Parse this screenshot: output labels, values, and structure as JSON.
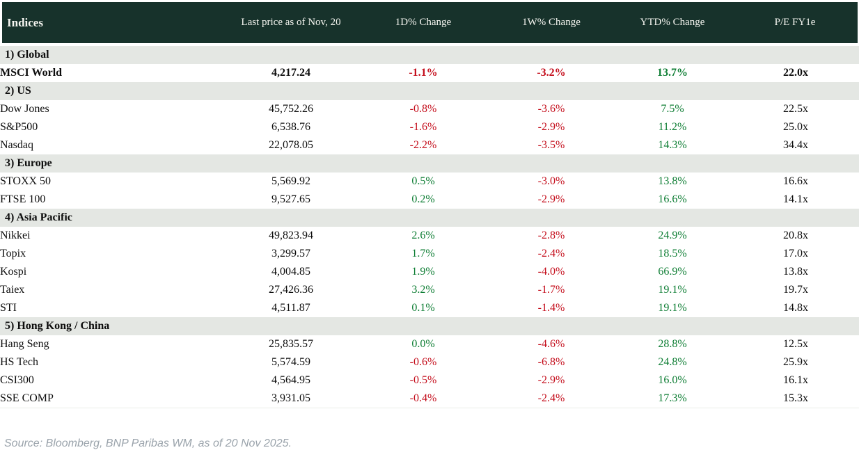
{
  "colors": {
    "header_bg": "#17322b",
    "section_bg": "#e4e7e3",
    "positive": "#0d7d33",
    "negative": "#c40d1b"
  },
  "chart_data": {
    "type": "table",
    "title": "Indices",
    "columns": [
      "Indices",
      "Last price as of Nov, 20",
      "1D% Change",
      "1W% Change",
      "YTD% Change",
      "P/E FY1e"
    ],
    "sections": [
      {
        "label": "1) Global",
        "rows": [
          {
            "name": "MSCI World",
            "bold": true,
            "values": [
              "4,217.24",
              "-1.1%",
              "-3.2%",
              "13.7%",
              "22.0x"
            ]
          }
        ]
      },
      {
        "label": "2) US",
        "rows": [
          {
            "name": "Dow Jones",
            "values": [
              "45,752.26",
              "-0.8%",
              "-3.6%",
              "7.5%",
              "22.5x"
            ]
          },
          {
            "name": "S&P500",
            "values": [
              "6,538.76",
              "-1.6%",
              "-2.9%",
              "11.2%",
              "25.0x"
            ]
          },
          {
            "name": "Nasdaq",
            "values": [
              "22,078.05",
              "-2.2%",
              "-3.5%",
              "14.3%",
              "34.4x"
            ]
          }
        ]
      },
      {
        "label": "3) Europe",
        "rows": [
          {
            "name": "STOXX 50",
            "values": [
              "5,569.92",
              "0.5%",
              "-3.0%",
              "13.8%",
              "16.6x"
            ]
          },
          {
            "name": "FTSE 100",
            "values": [
              "9,527.65",
              "0.2%",
              "-2.9%",
              "16.6%",
              "14.1x"
            ]
          }
        ]
      },
      {
        "label": "4) Asia Pacific",
        "rows": [
          {
            "name": "Nikkei",
            "values": [
              "49,823.94",
              "2.6%",
              "-2.8%",
              "24.9%",
              "20.8x"
            ]
          },
          {
            "name": "Topix",
            "values": [
              "3,299.57",
              "1.7%",
              "-2.4%",
              "18.5%",
              "17.0x"
            ]
          },
          {
            "name": "Kospi",
            "values": [
              "4,004.85",
              "1.9%",
              "-4.0%",
              "66.9%",
              "13.8x"
            ]
          },
          {
            "name": "Taiex",
            "values": [
              "27,426.36",
              "3.2%",
              "-1.7%",
              "19.1%",
              "19.7x"
            ]
          },
          {
            "name": "STI",
            "values": [
              "4,511.87",
              "0.1%",
              "-1.4%",
              "19.1%",
              "14.8x"
            ]
          }
        ]
      },
      {
        "label": "5) Hong Kong / China",
        "rows": [
          {
            "name": "Hang Seng",
            "values": [
              "25,835.57",
              "0.0%",
              "-4.6%",
              "28.8%",
              "12.5x"
            ]
          },
          {
            "name": "HS Tech",
            "values": [
              "5,574.59",
              "-0.6%",
              "-6.8%",
              "24.8%",
              "25.9x"
            ]
          },
          {
            "name": "CSI300",
            "values": [
              "4,564.95",
              "-0.5%",
              "-2.9%",
              "16.0%",
              "16.1x"
            ]
          },
          {
            "name": "SSE COMP",
            "values": [
              "3,931.05",
              "-0.4%",
              "-2.4%",
              "17.3%",
              "15.3x"
            ]
          }
        ]
      }
    ]
  },
  "footer": {
    "source": "Source: Bloomberg, BNP Paribas WM, as of 20 Nov 2025."
  }
}
